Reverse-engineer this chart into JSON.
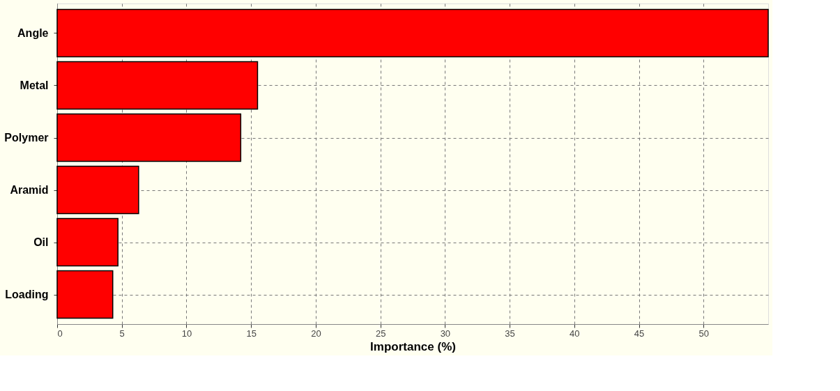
{
  "chart_data": {
    "type": "bar",
    "orientation": "horizontal",
    "categories": [
      "Angle",
      "Metal",
      "Polymer",
      "Aramid",
      "Oil",
      "Loading"
    ],
    "values": [
      55.0,
      15.5,
      14.2,
      6.3,
      4.7,
      4.3
    ],
    "color": "#ff0000",
    "xlabel": "Importance (%)",
    "xlim": [
      0,
      55
    ],
    "xticks": [
      0,
      5,
      10,
      15,
      20,
      25,
      30,
      35,
      40,
      45,
      50
    ],
    "grid": true
  }
}
